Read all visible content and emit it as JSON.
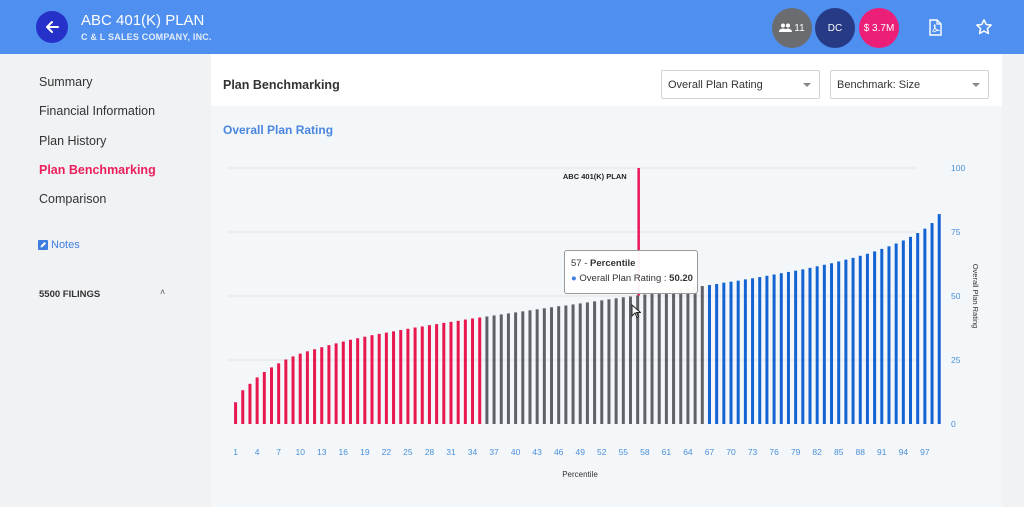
{
  "header": {
    "title": "ABC 401(K) PLAN",
    "subtitle": "C & L SALES COMPANY, INC.",
    "participants_count": "11",
    "plan_type": "DC",
    "assets": "$ 3.7M",
    "icons": [
      "arrow-left-icon",
      "people-icon",
      "pdf-icon",
      "star-icon"
    ]
  },
  "sidebar": {
    "items": [
      {
        "label": "Summary",
        "active": false
      },
      {
        "label": "Financial Information",
        "active": false
      },
      {
        "label": "Plan History",
        "active": false
      },
      {
        "label": "Plan Benchmarking",
        "active": true
      },
      {
        "label": "Comparison",
        "active": false
      }
    ],
    "notes_label": "Notes",
    "filings_label": "5500 FILINGS"
  },
  "panel": {
    "title": "Plan Benchmarking",
    "metric_select": "Overall Plan Rating",
    "benchmark_select": "Benchmark: Size"
  },
  "chart_title": "Overall Plan Rating",
  "tooltip": {
    "percentile": "57",
    "sep": " - ",
    "header": "Percentile",
    "series_label": "Overall Plan Rating : ",
    "value": "50.20"
  },
  "chart_data": {
    "type": "bar",
    "title": "Overall Plan Rating",
    "xlabel": "Percentile",
    "ylabel": "Overall Plan Rating",
    "ylim": [
      0,
      100
    ],
    "yticks": [
      0,
      25,
      50,
      75,
      100
    ],
    "xtick_labels": [
      "1",
      "4",
      "7",
      "10",
      "13",
      "16",
      "19",
      "22",
      "25",
      "28",
      "31",
      "34",
      "37",
      "40",
      "43",
      "46",
      "49",
      "52",
      "55",
      "58",
      "61",
      "64",
      "67",
      "70",
      "73",
      "76",
      "79",
      "82",
      "85",
      "88",
      "91",
      "94",
      "97"
    ],
    "marker": {
      "label": "ABC 401(K) PLAN",
      "percentile": 57
    },
    "colors": {
      "low": "#e8174f",
      "mid": "#5f6166",
      "high": "#1463d3",
      "marker": "#e8175d",
      "grid": "#e1e4e8",
      "tick": "#4a8fd8"
    },
    "color_bands": [
      {
        "from": 1,
        "to": 35,
        "color": "low"
      },
      {
        "from": 36,
        "to": 66,
        "color": "mid"
      },
      {
        "from": 67,
        "to": 100,
        "color": "high"
      }
    ],
    "x": [
      1,
      2,
      3,
      4,
      5,
      6,
      7,
      8,
      9,
      10,
      11,
      12,
      13,
      14,
      15,
      16,
      17,
      18,
      19,
      20,
      21,
      22,
      23,
      24,
      25,
      26,
      27,
      28,
      29,
      30,
      31,
      32,
      33,
      34,
      35,
      36,
      37,
      38,
      39,
      40,
      41,
      42,
      43,
      44,
      45,
      46,
      47,
      48,
      49,
      50,
      51,
      52,
      53,
      54,
      55,
      56,
      57,
      58,
      59,
      60,
      61,
      62,
      63,
      64,
      65,
      66,
      67,
      68,
      69,
      70,
      71,
      72,
      73,
      74,
      75,
      76,
      77,
      78,
      79,
      80,
      81,
      82,
      83,
      84,
      85,
      86,
      87,
      88,
      89,
      90,
      91,
      92,
      93,
      94,
      95,
      96,
      97,
      98,
      99
    ],
    "values": [
      8.5,
      13.2,
      15.7,
      18.2,
      20.3,
      22.1,
      23.7,
      25.2,
      26.4,
      27.5,
      28.4,
      29.2,
      30.0,
      30.8,
      31.5,
      32.2,
      32.9,
      33.5,
      34.1,
      34.7,
      35.2,
      35.7,
      36.2,
      36.7,
      37.2,
      37.7,
      38.1,
      38.6,
      39.0,
      39.5,
      39.9,
      40.3,
      40.8,
      41.2,
      41.6,
      42.0,
      42.4,
      42.8,
      43.2,
      43.6,
      44.0,
      44.4,
      44.8,
      45.2,
      45.6,
      46.0,
      46.3,
      46.7,
      47.1,
      47.5,
      47.9,
      48.3,
      48.7,
      49.1,
      49.5,
      49.8,
      50.2,
      50.6,
      51.0,
      51.4,
      51.8,
      52.2,
      52.6,
      53.0,
      53.5,
      53.9,
      54.3,
      54.7,
      55.2,
      55.6,
      56.0,
      56.5,
      56.9,
      57.4,
      57.9,
      58.4,
      58.9,
      59.4,
      59.9,
      60.4,
      61.0,
      61.6,
      62.2,
      62.8,
      63.5,
      64.2,
      64.9,
      65.7,
      66.5,
      67.4,
      68.4,
      69.4,
      70.5,
      71.7,
      73.1,
      74.6,
      76.3,
      78.5,
      82.0
    ]
  }
}
